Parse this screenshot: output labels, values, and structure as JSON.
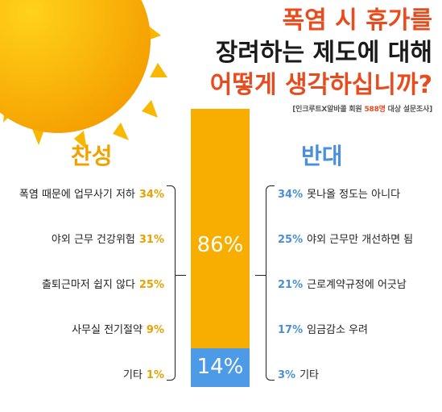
{
  "title": {
    "line1": "폭염 시 휴가를",
    "line2": "장려하는 제도에 대해",
    "line3": "어떻게 생각하십니까?",
    "subtitle_prefix": "[인크루트X알바콜 회원 ",
    "subtitle_count": "588명",
    "subtitle_suffix": " 대상 설문조사]"
  },
  "colors": {
    "yes": "#f7ae00",
    "no": "#4d9be6",
    "title_accent": "#e84c1e"
  },
  "chart_data": {
    "type": "bar",
    "title": "폭염 시 휴가를 장려하는 제도에 대해 어떻게 생각하십니까?",
    "categories": [
      "찬성",
      "반대"
    ],
    "values": [
      86,
      14
    ],
    "value_labels": [
      "86%",
      "14%"
    ],
    "breakdown": {
      "yes": {
        "label": "찬성",
        "items": [
          {
            "label": "폭염 때문에 업무사기 저하",
            "value": "34%"
          },
          {
            "label": "야외 근무 건강위험",
            "value": "31%"
          },
          {
            "label": "출퇴근마저 쉽지 않다",
            "value": "25%"
          },
          {
            "label": "사무실 전기절약",
            "value": "9%"
          },
          {
            "label": "기타",
            "value": "1%"
          }
        ]
      },
      "no": {
        "label": "반대",
        "items": [
          {
            "label": "못나올 정도는 아니다",
            "value": "34%"
          },
          {
            "label": "야외 근무만 개선하면 됨",
            "value": "25%"
          },
          {
            "label": "근로계약규정에 어긋남",
            "value": "21%"
          },
          {
            "label": "임금감소 우려",
            "value": "17%"
          },
          {
            "label": "기타",
            "value": "3%"
          }
        ]
      }
    }
  }
}
